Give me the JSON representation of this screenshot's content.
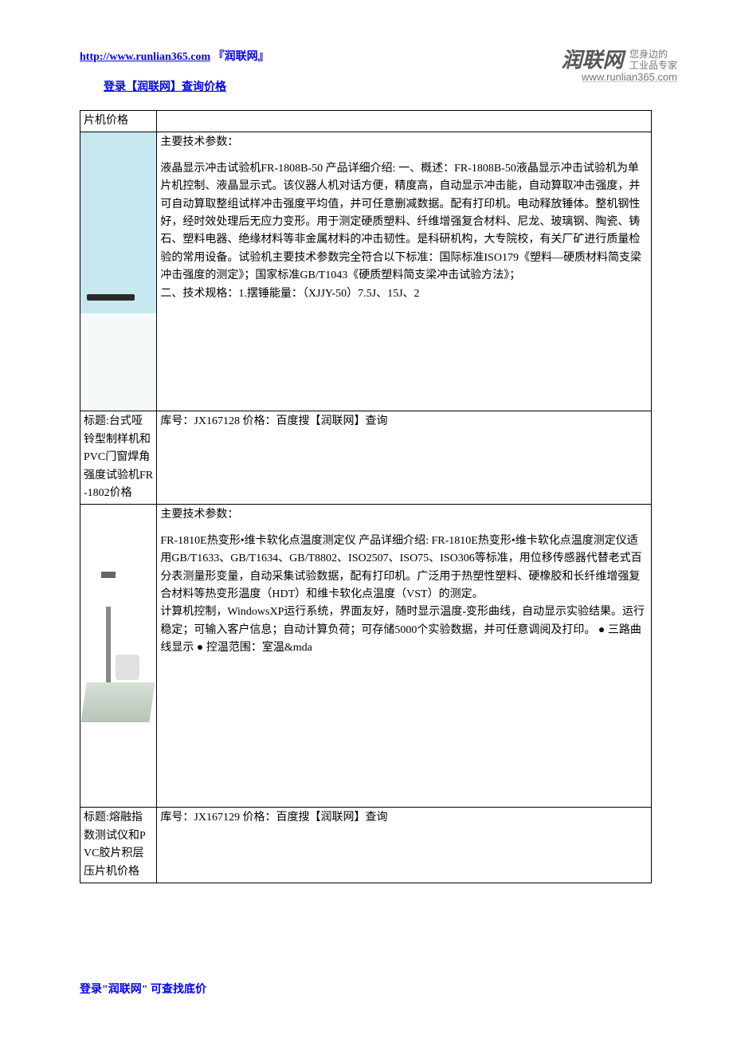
{
  "header": {
    "url": "http://www.runlian365.com",
    "site_name": "『润联网』",
    "login_text": "登录【润联网】查询价格"
  },
  "watermark": {
    "main": "润联网",
    "sub1": "您身边的",
    "sub2": "工业品专家",
    "url": "www.runlian365.com"
  },
  "rows": [
    {
      "left": "片机价格",
      "right": ""
    },
    {
      "type": "product1",
      "desc_title": "主要技术参数：",
      "desc_body": "液晶显示冲击试验机FR-1808B-50 产品详细介绍: 一、概述：FR-1808B-50液晶显示冲击试验机为单片机控制、液晶显示式。该仪器人机对话方便，精度高，自动显示冲击能，自动算取冲击强度，并可自动算取整组试样冲击强度平均值，并可任意删减数据。配有打印机。电动释放锤体。整机钢性好，经时效处理后无应力变形。用于测定硬质塑料、纤维增强复合材料、尼龙、玻璃钢、陶瓷、铸石、塑料电器、绝缘材料等非金属材料的冲击韧性。是科研机构，大专院校，有关厂矿进行质量检验的常用设备。试验机主要技术参数完全符合以下标准：国际标准ISO179《塑料—硬质材料简支梁冲击强度的测定》；国家标准GB/T1043《硬质塑料简支梁冲击试验方法》；\n二、技术规格：1.摆锤能量：（XJJY-50）7.5J、15J、2"
    },
    {
      "type": "title_row",
      "left": "标题:台式哑铃型制样机和PVC门窗焊角强度试验机FR-1802价格",
      "right": "库号：JX167128 价格：百度搜【润联网】查询"
    },
    {
      "type": "product2",
      "desc_title": "主要技术参数：",
      "desc_body": "FR-1810E热变形•维卡软化点温度测定仪 产品详细介绍: FR-1810E热变形•维卡软化点温度测定仪适用GB/T1633、GB/T1634、GB/T8802、ISO2507、ISO75、ISO306等标准，用位移传感器代替老式百分表测量形变量，自动采集试验数据，配有打印机。广泛用于热塑性塑料、硬橡胶和长纤维增强复合材料等热变形温度（HDT）和维卡软化点温度（VST）的测定。\n计算机控制，WindowsXP运行系统，界面友好，随时显示温度-变形曲线，自动显示实验结果。运行稳定；可输入客户信息；自动计算负荷；可存储5000个实验数据，并可任意调阅及打印。 ● 三路曲线显示 ● 控温范围：室温&mda"
    },
    {
      "type": "title_row",
      "left": "标题:熔融指数测试仪和PVC胶片积层压片机价格",
      "right": "库号：JX167129 价格：百度搜【润联网】查询"
    }
  ],
  "footer": "登录\"润联网\" 可查找底价"
}
